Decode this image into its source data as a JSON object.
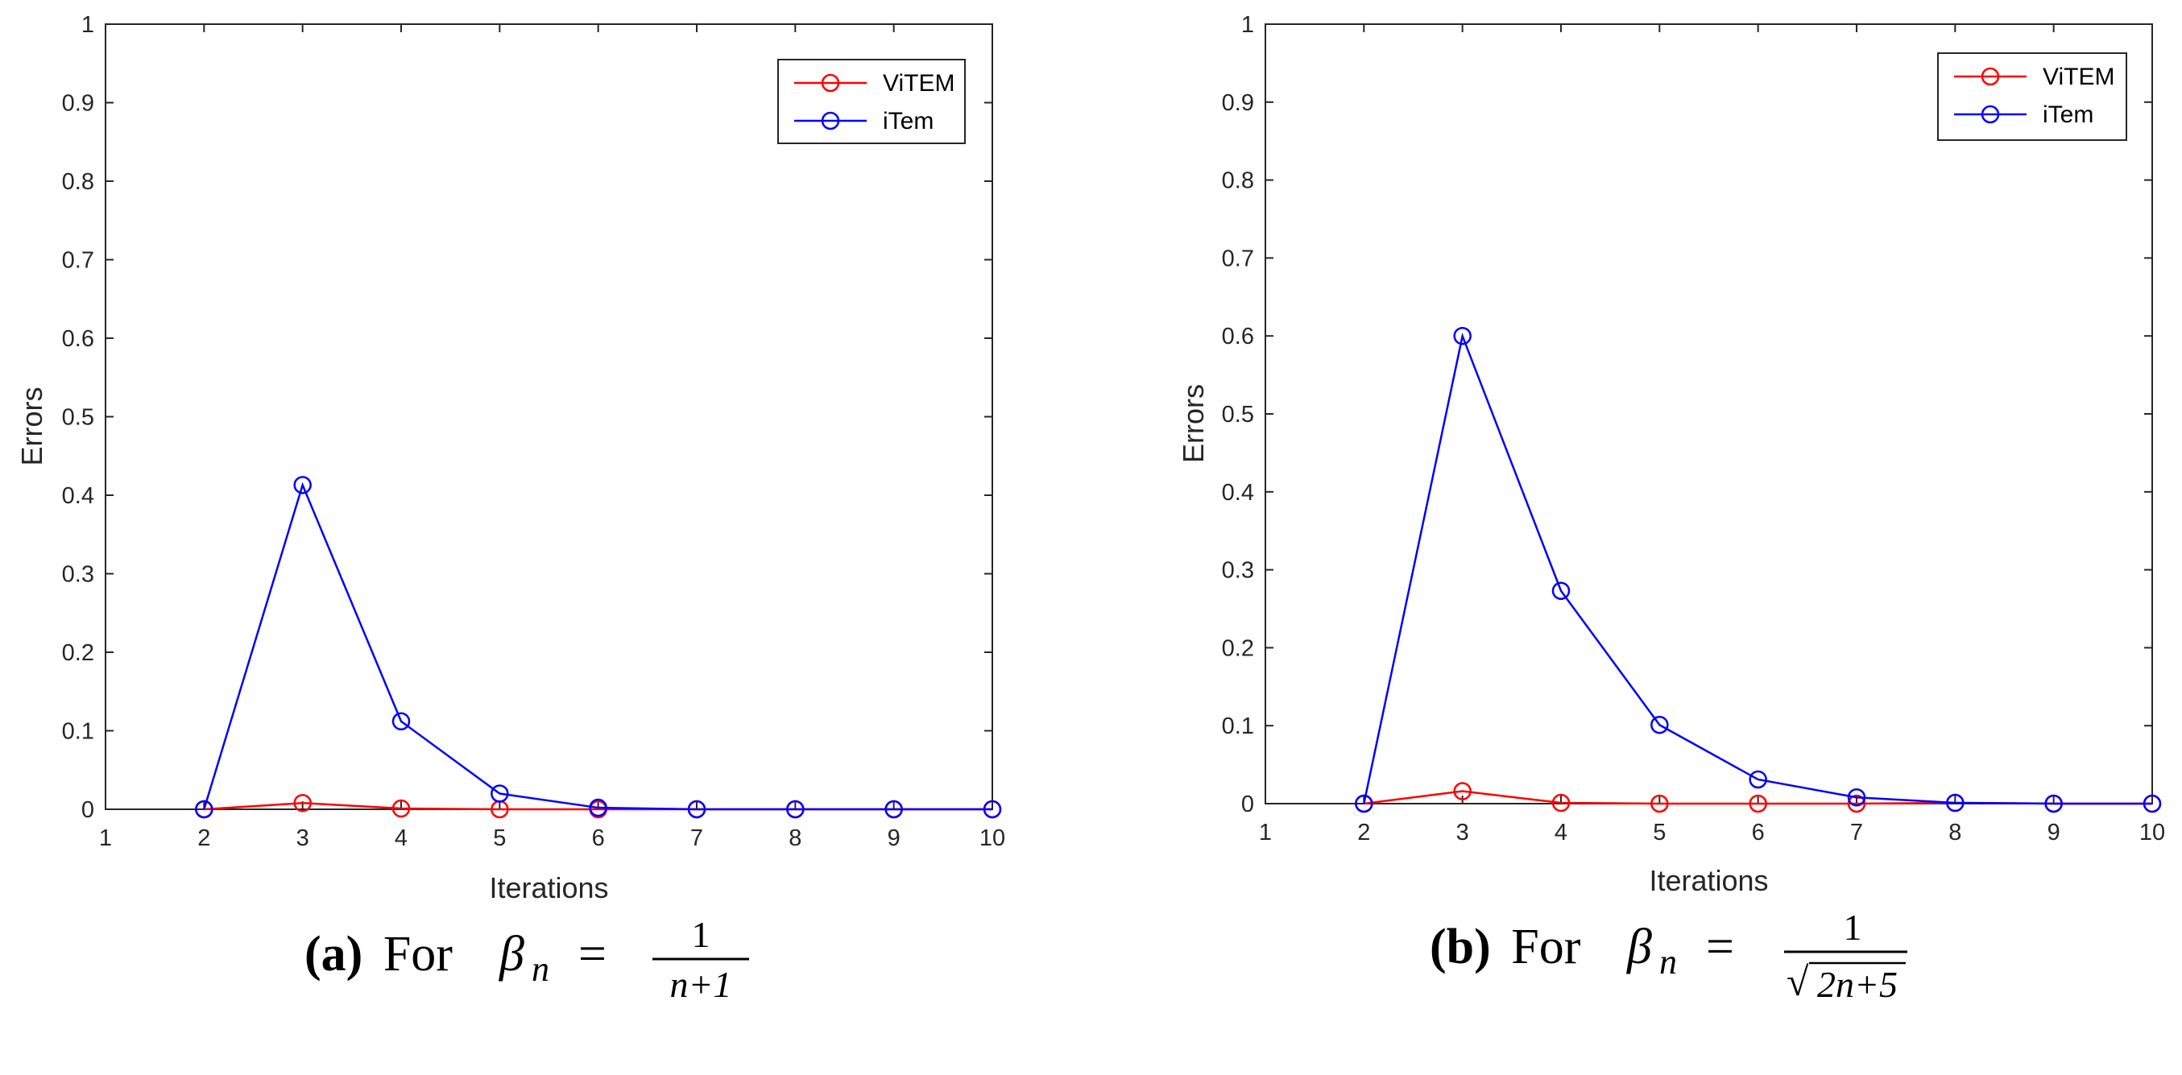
{
  "chart_data": [
    {
      "type": "line",
      "xlabel": "Iterations",
      "ylabel": "Errors",
      "xlim": [
        1,
        10
      ],
      "ylim": [
        0,
        1
      ],
      "xticks": [
        "1",
        "2",
        "3",
        "4",
        "5",
        "6",
        "7",
        "8",
        "9",
        "10"
      ],
      "yticks": [
        "0",
        "0.1",
        "0.2",
        "0.3",
        "0.4",
        "0.5",
        "0.6",
        "0.7",
        "0.8",
        "0.9",
        "1"
      ],
      "x": [
        2,
        3,
        4,
        5,
        6,
        7,
        8,
        9,
        10
      ],
      "series": [
        {
          "name": "ViTEM",
          "color": "#ff0000",
          "values": [
            0,
            0.008,
            0.001,
            0,
            0,
            0,
            0,
            0,
            0
          ]
        },
        {
          "name": "iTem",
          "color": "#0000ff",
          "values": [
            0,
            0.413,
            0.112,
            0.02,
            0.002,
            0,
            0,
            0,
            0
          ]
        }
      ],
      "legend_position": "top-right",
      "caption": {
        "label": "a",
        "text": "For",
        "symbol": "β",
        "sub": "n",
        "eq": "=",
        "num": "1",
        "den": "n+1"
      }
    },
    {
      "type": "line",
      "xlabel": "Iterations",
      "ylabel": "Errors",
      "xlim": [
        1,
        10
      ],
      "ylim": [
        0,
        1
      ],
      "xticks": [
        "1",
        "2",
        "3",
        "4",
        "5",
        "6",
        "7",
        "8",
        "9",
        "10"
      ],
      "yticks": [
        "0",
        "0.1",
        "0.2",
        "0.3",
        "0.4",
        "0.5",
        "0.6",
        "0.7",
        "0.8",
        "0.9",
        "1"
      ],
      "x": [
        2,
        3,
        4,
        5,
        6,
        7,
        8,
        9,
        10
      ],
      "series": [
        {
          "name": "ViTEM",
          "color": "#ff0000",
          "values": [
            0,
            0.016,
            0.001,
            0,
            0,
            0,
            0.001,
            0,
            0
          ]
        },
        {
          "name": "iTem",
          "color": "#0000ff",
          "values": [
            0,
            0.6,
            0.273,
            0.101,
            0.031,
            0.008,
            0.001,
            0,
            0
          ]
        }
      ],
      "legend_position": "top-right",
      "caption": {
        "label": "b",
        "text": "For",
        "symbol": "β",
        "sub": "n",
        "eq": "=",
        "num": "1",
        "den": "2n+5",
        "den_root": "√"
      }
    }
  ]
}
